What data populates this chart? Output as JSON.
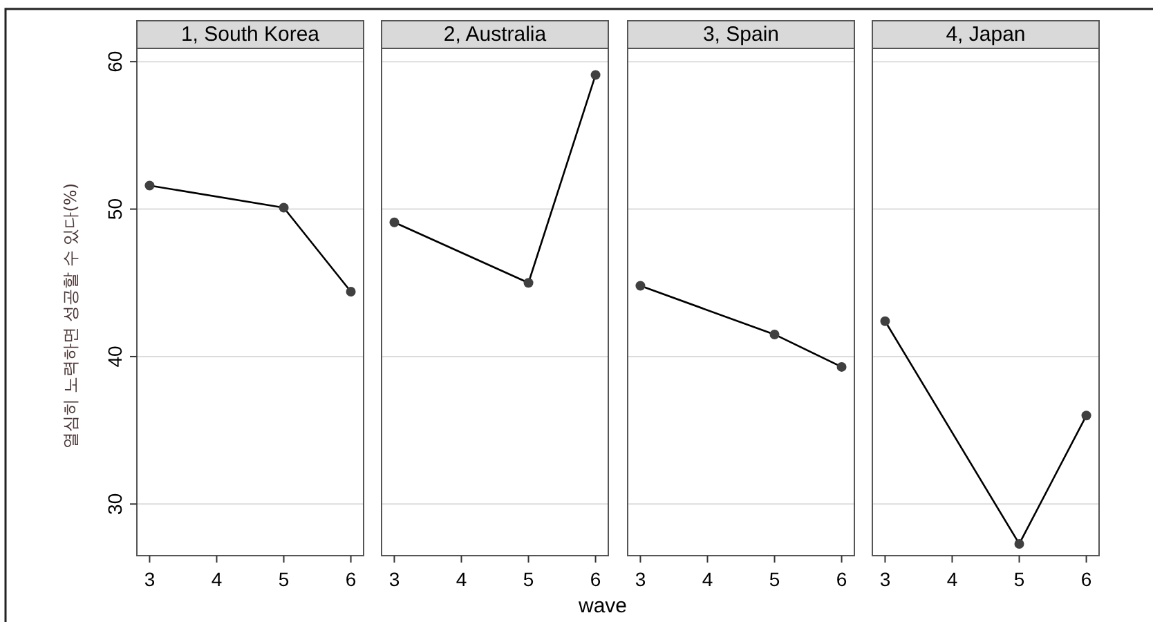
{
  "chart_data": [
    {
      "type": "line",
      "title": "1, South Korea",
      "ylabel": "열심히 노력하면 성공할 수 있다(%)",
      "x": [
        3,
        5,
        6
      ],
      "series": [
        {
          "color": "#404040",
          "values": [
            51.6,
            50.1,
            44.4
          ]
        }
      ],
      "xlim": [
        2.81,
        6.19
      ],
      "xticks": [
        3,
        4,
        5,
        6
      ],
      "ylim": [
        26.5,
        60.9
      ],
      "yticks": [
        30,
        40,
        50,
        60
      ],
      "grid": "y",
      "marker": "circle"
    },
    {
      "type": "line",
      "title": "2, Australia",
      "xlabel": "wave",
      "x": [
        3,
        5,
        6
      ],
      "series": [
        {
          "color": "#404040",
          "values": [
            49.1,
            45.0,
            59.1
          ]
        }
      ],
      "xlim": [
        2.81,
        6.19
      ],
      "xticks": [
        3,
        4,
        5,
        6
      ],
      "ylim": [
        26.5,
        60.9
      ],
      "yticks": [
        30,
        40,
        50,
        60
      ],
      "grid": "y",
      "marker": "circle",
      "tick_labels": "x"
    },
    {
      "type": "line",
      "title": "3, Spain",
      "x": [
        3,
        5,
        6
      ],
      "series": [
        {
          "color": "#404040",
          "values": [
            44.8,
            41.5,
            39.3
          ]
        }
      ],
      "xlim": [
        2.81,
        6.19
      ],
      "xticks": [
        3,
        4,
        5,
        6
      ],
      "ylim": [
        26.5,
        60.9
      ],
      "yticks": [
        30,
        40,
        50,
        60
      ],
      "grid": "y",
      "marker": "circle",
      "tick_labels": "x"
    },
    {
      "type": "line",
      "title": "4, Japan",
      "x": [
        3,
        5,
        6
      ],
      "series": [
        {
          "color": "#404040",
          "values": [
            42.4,
            27.3,
            36.0
          ]
        }
      ],
      "xlim": [
        2.81,
        6.19
      ],
      "xticks": [
        3,
        4,
        5,
        6
      ],
      "ylim": [
        26.5,
        60.9
      ],
      "yticks": [
        30,
        40,
        50,
        60
      ],
      "grid": "y",
      "marker": "circle",
      "tick_labels": "x"
    }
  ]
}
